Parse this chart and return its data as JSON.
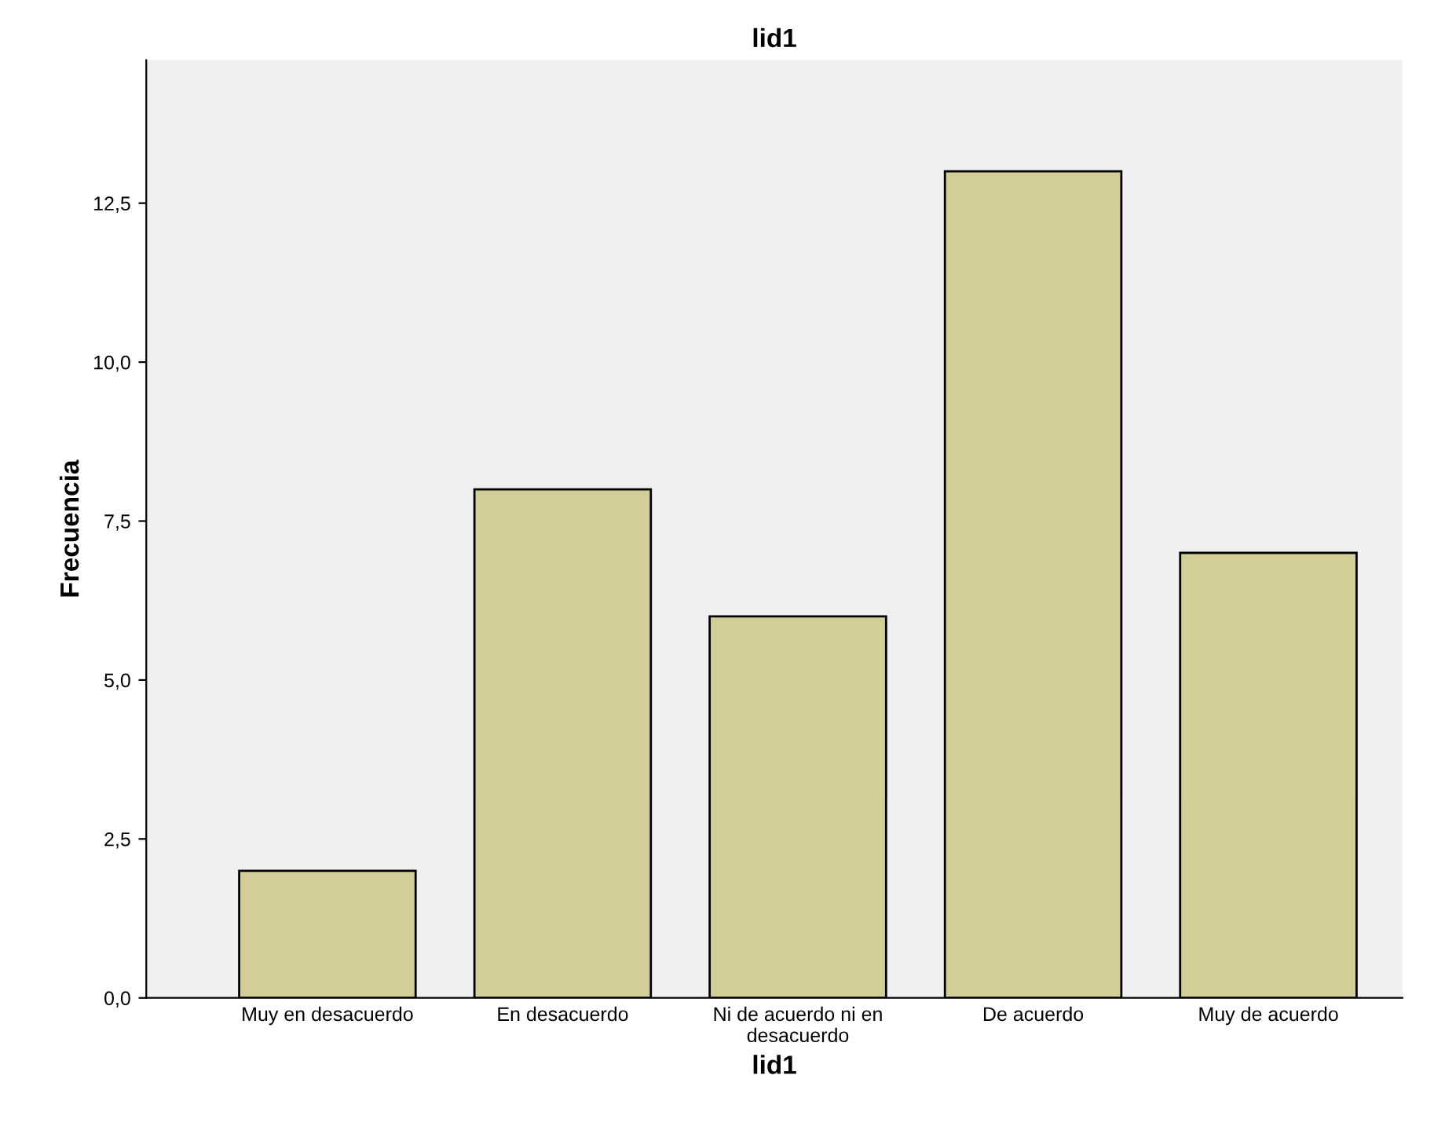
{
  "chart_data": {
    "type": "bar",
    "title": "lid1",
    "xlabel": "lid1",
    "ylabel": "Frecuencia",
    "categories": [
      "Muy en desacuerdo",
      "En desacuerdo",
      "Ni de acuerdo ni en desacuerdo",
      "De acuerdo",
      "Muy de acuerdo"
    ],
    "values": [
      2,
      8,
      6,
      13,
      7
    ],
    "color": "#d3ce97",
    "ylim": [
      0,
      14.75
    ],
    "yticks": [
      {
        "value": 0,
        "label": "0,0"
      },
      {
        "value": 2.5,
        "label": "2,5"
      },
      {
        "value": 5,
        "label": "5,0"
      },
      {
        "value": 7.5,
        "label": "7,5"
      },
      {
        "value": 10,
        "label": "10,0"
      },
      {
        "value": 12.5,
        "label": "12,5"
      }
    ],
    "grid": false,
    "legend": false
  }
}
